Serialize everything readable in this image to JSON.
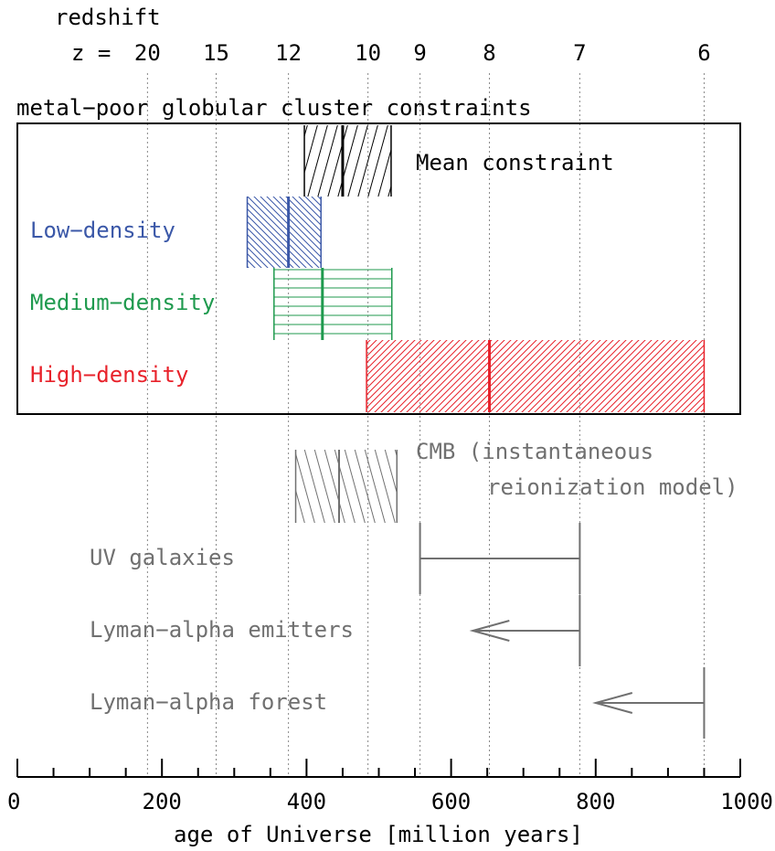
{
  "chart_data": {
    "type": "interval",
    "xlabel": "age of Universe [million years]",
    "xlim": [
      0,
      1000
    ],
    "x_ticks": [
      {
        "value": 0,
        "label": "0"
      },
      {
        "value": 200,
        "label": "200"
      },
      {
        "value": 400,
        "label": "400"
      },
      {
        "value": 600,
        "label": "600"
      },
      {
        "value": 800,
        "label": "800"
      },
      {
        "value": 1000,
        "label": "1000"
      }
    ],
    "top_axis": {
      "title": "redshift",
      "prefix": "z =",
      "ticks": [
        {
          "z": "20",
          "age": 180
        },
        {
          "z": "15",
          "age": 275
        },
        {
          "z": "12",
          "age": 375
        },
        {
          "z": "10",
          "age": 485
        },
        {
          "z": "9",
          "age": 557
        },
        {
          "z": "8",
          "age": 653
        },
        {
          "z": "7",
          "age": 778
        },
        {
          "z": "6",
          "age": 950
        }
      ]
    },
    "panel_title": "metal−poor globular cluster constraints",
    "gc_constraints": [
      {
        "name": "Mean constraint",
        "min": 397,
        "max": 517,
        "center": 450,
        "color": "#000000",
        "hatch": "steep-forward"
      },
      {
        "name": "Low−density",
        "min": 318,
        "max": 420,
        "center": 375,
        "color": "#3b58a8",
        "hatch": "back"
      },
      {
        "name": "Medium−density",
        "min": 355,
        "max": 518,
        "center": 422,
        "color": "#1f9a4e",
        "hatch": "horizontal"
      },
      {
        "name": "High−density",
        "min": 483,
        "max": 950,
        "center": 653,
        "color": "#e8222b",
        "hatch": "forward"
      }
    ],
    "other_constraints": [
      {
        "name": "CMB",
        "label_lines": [
          "CMB (instantaneous",
          "reionization model)"
        ],
        "kind": "band",
        "min": 385,
        "max": 525,
        "center": 445,
        "color": "#707070"
      },
      {
        "name": "UV galaxies",
        "kind": "range",
        "min": 557,
        "max": 778,
        "color": "#707070"
      },
      {
        "name": "Lyman−alpha emitters",
        "kind": "upper_limit",
        "cap": 778,
        "arrow_to": 630,
        "color": "#707070"
      },
      {
        "name": "Lyman−alpha forest",
        "kind": "upper_limit",
        "cap": 950,
        "arrow_to": 800,
        "color": "#707070"
      }
    ]
  }
}
